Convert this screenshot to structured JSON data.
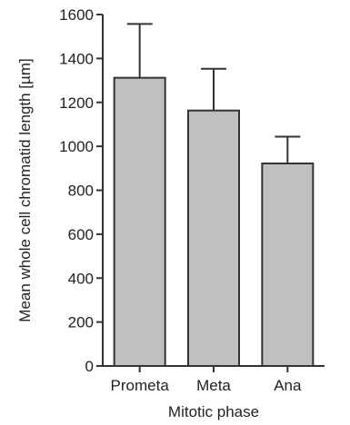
{
  "chart_data": {
    "type": "bar",
    "categories": [
      "Prometa",
      "Meta",
      "Ana"
    ],
    "values": [
      1312,
      1163,
      922
    ],
    "errors": [
      245,
      190,
      122
    ],
    "xlabel": "Mitotic phase",
    "ylabel": "Mean whole cell chromatid length [µm]",
    "ylim": [
      0,
      1600
    ],
    "yticks": [
      0,
      200,
      400,
      600,
      800,
      1000,
      1200,
      1400,
      1600
    ],
    "grid": false,
    "bar_color": "#c0c0c0",
    "edge_color": "#333333"
  }
}
